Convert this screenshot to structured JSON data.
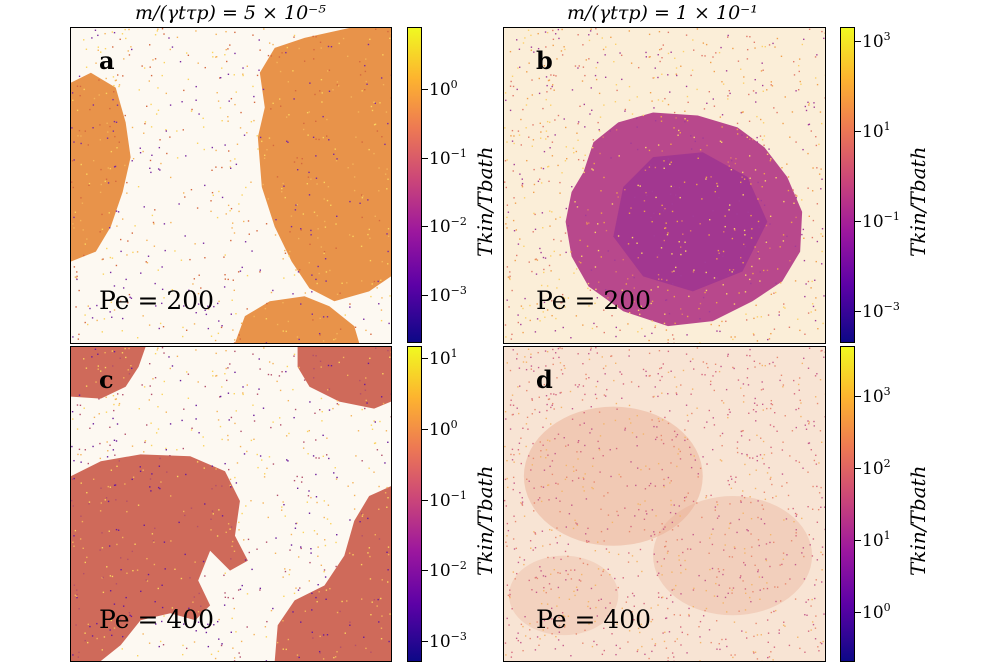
{
  "chart_data": [
    {
      "type": "heatmap",
      "panel": "a",
      "title": "m/(γtτp) = 5 × 10⁻⁵",
      "annotation": "Pe = 200",
      "colorbar": {
        "label": "Tkin/Tbath",
        "scale": "log",
        "range": [
          0.0002,
          8
        ],
        "ticks": [
          {
            "base": "10",
            "exp": "0",
            "value": 1
          },
          {
            "base": "10",
            "exp": "−1",
            "value": 0.1
          },
          {
            "base": "10",
            "exp": "−2",
            "value": 0.01
          },
          {
            "base": "10",
            "exp": "−3",
            "value": 0.001
          }
        ]
      },
      "dense_color": "#e8934a",
      "dilute_color": "#fdf9f2"
    },
    {
      "type": "heatmap",
      "panel": "b",
      "title": "m/(γtτp) = 1 × 10⁻¹",
      "annotation": "Pe = 200",
      "colorbar": {
        "label": "Tkin/Tbath",
        "scale": "log",
        "range": [
          0.0002,
          2000
        ],
        "ticks": [
          {
            "base": "10",
            "exp": "3",
            "value": 1000
          },
          {
            "base": "10",
            "exp": "1",
            "value": 10
          },
          {
            "base": "10",
            "exp": "−1",
            "value": 0.1
          },
          {
            "base": "10",
            "exp": "−3",
            "value": 0.001
          }
        ]
      },
      "dense_color": "#b8488c",
      "dilute_color": "#fbeed8"
    },
    {
      "type": "heatmap",
      "panel": "c",
      "annotation": "Pe = 400",
      "colorbar": {
        "label": "Tkin/Tbath",
        "scale": "log",
        "range": [
          0.0005,
          15
        ],
        "ticks": [
          {
            "base": "10",
            "exp": "1",
            "value": 10
          },
          {
            "base": "10",
            "exp": "0",
            "value": 1
          },
          {
            "base": "10",
            "exp": "−1",
            "value": 0.1
          },
          {
            "base": "10",
            "exp": "−2",
            "value": 0.01
          },
          {
            "base": "10",
            "exp": "−3",
            "value": 0.001
          }
        ]
      },
      "dense_color": "#cf6a5a",
      "dilute_color": "#fdf9f2"
    },
    {
      "type": "heatmap",
      "panel": "d",
      "annotation": "Pe = 400",
      "colorbar": {
        "label": "Tkin/Tbath",
        "scale": "log",
        "range": [
          0.2,
          5000
        ],
        "ticks": [
          {
            "base": "10",
            "exp": "3",
            "value": 1000
          },
          {
            "base": "10",
            "exp": "2",
            "value": 100
          },
          {
            "base": "10",
            "exp": "1",
            "value": 10
          },
          {
            "base": "10",
            "exp": "0",
            "value": 1
          }
        ]
      },
      "dense_color": "#e9a88e",
      "dilute_color": "#f8e4d4"
    }
  ]
}
